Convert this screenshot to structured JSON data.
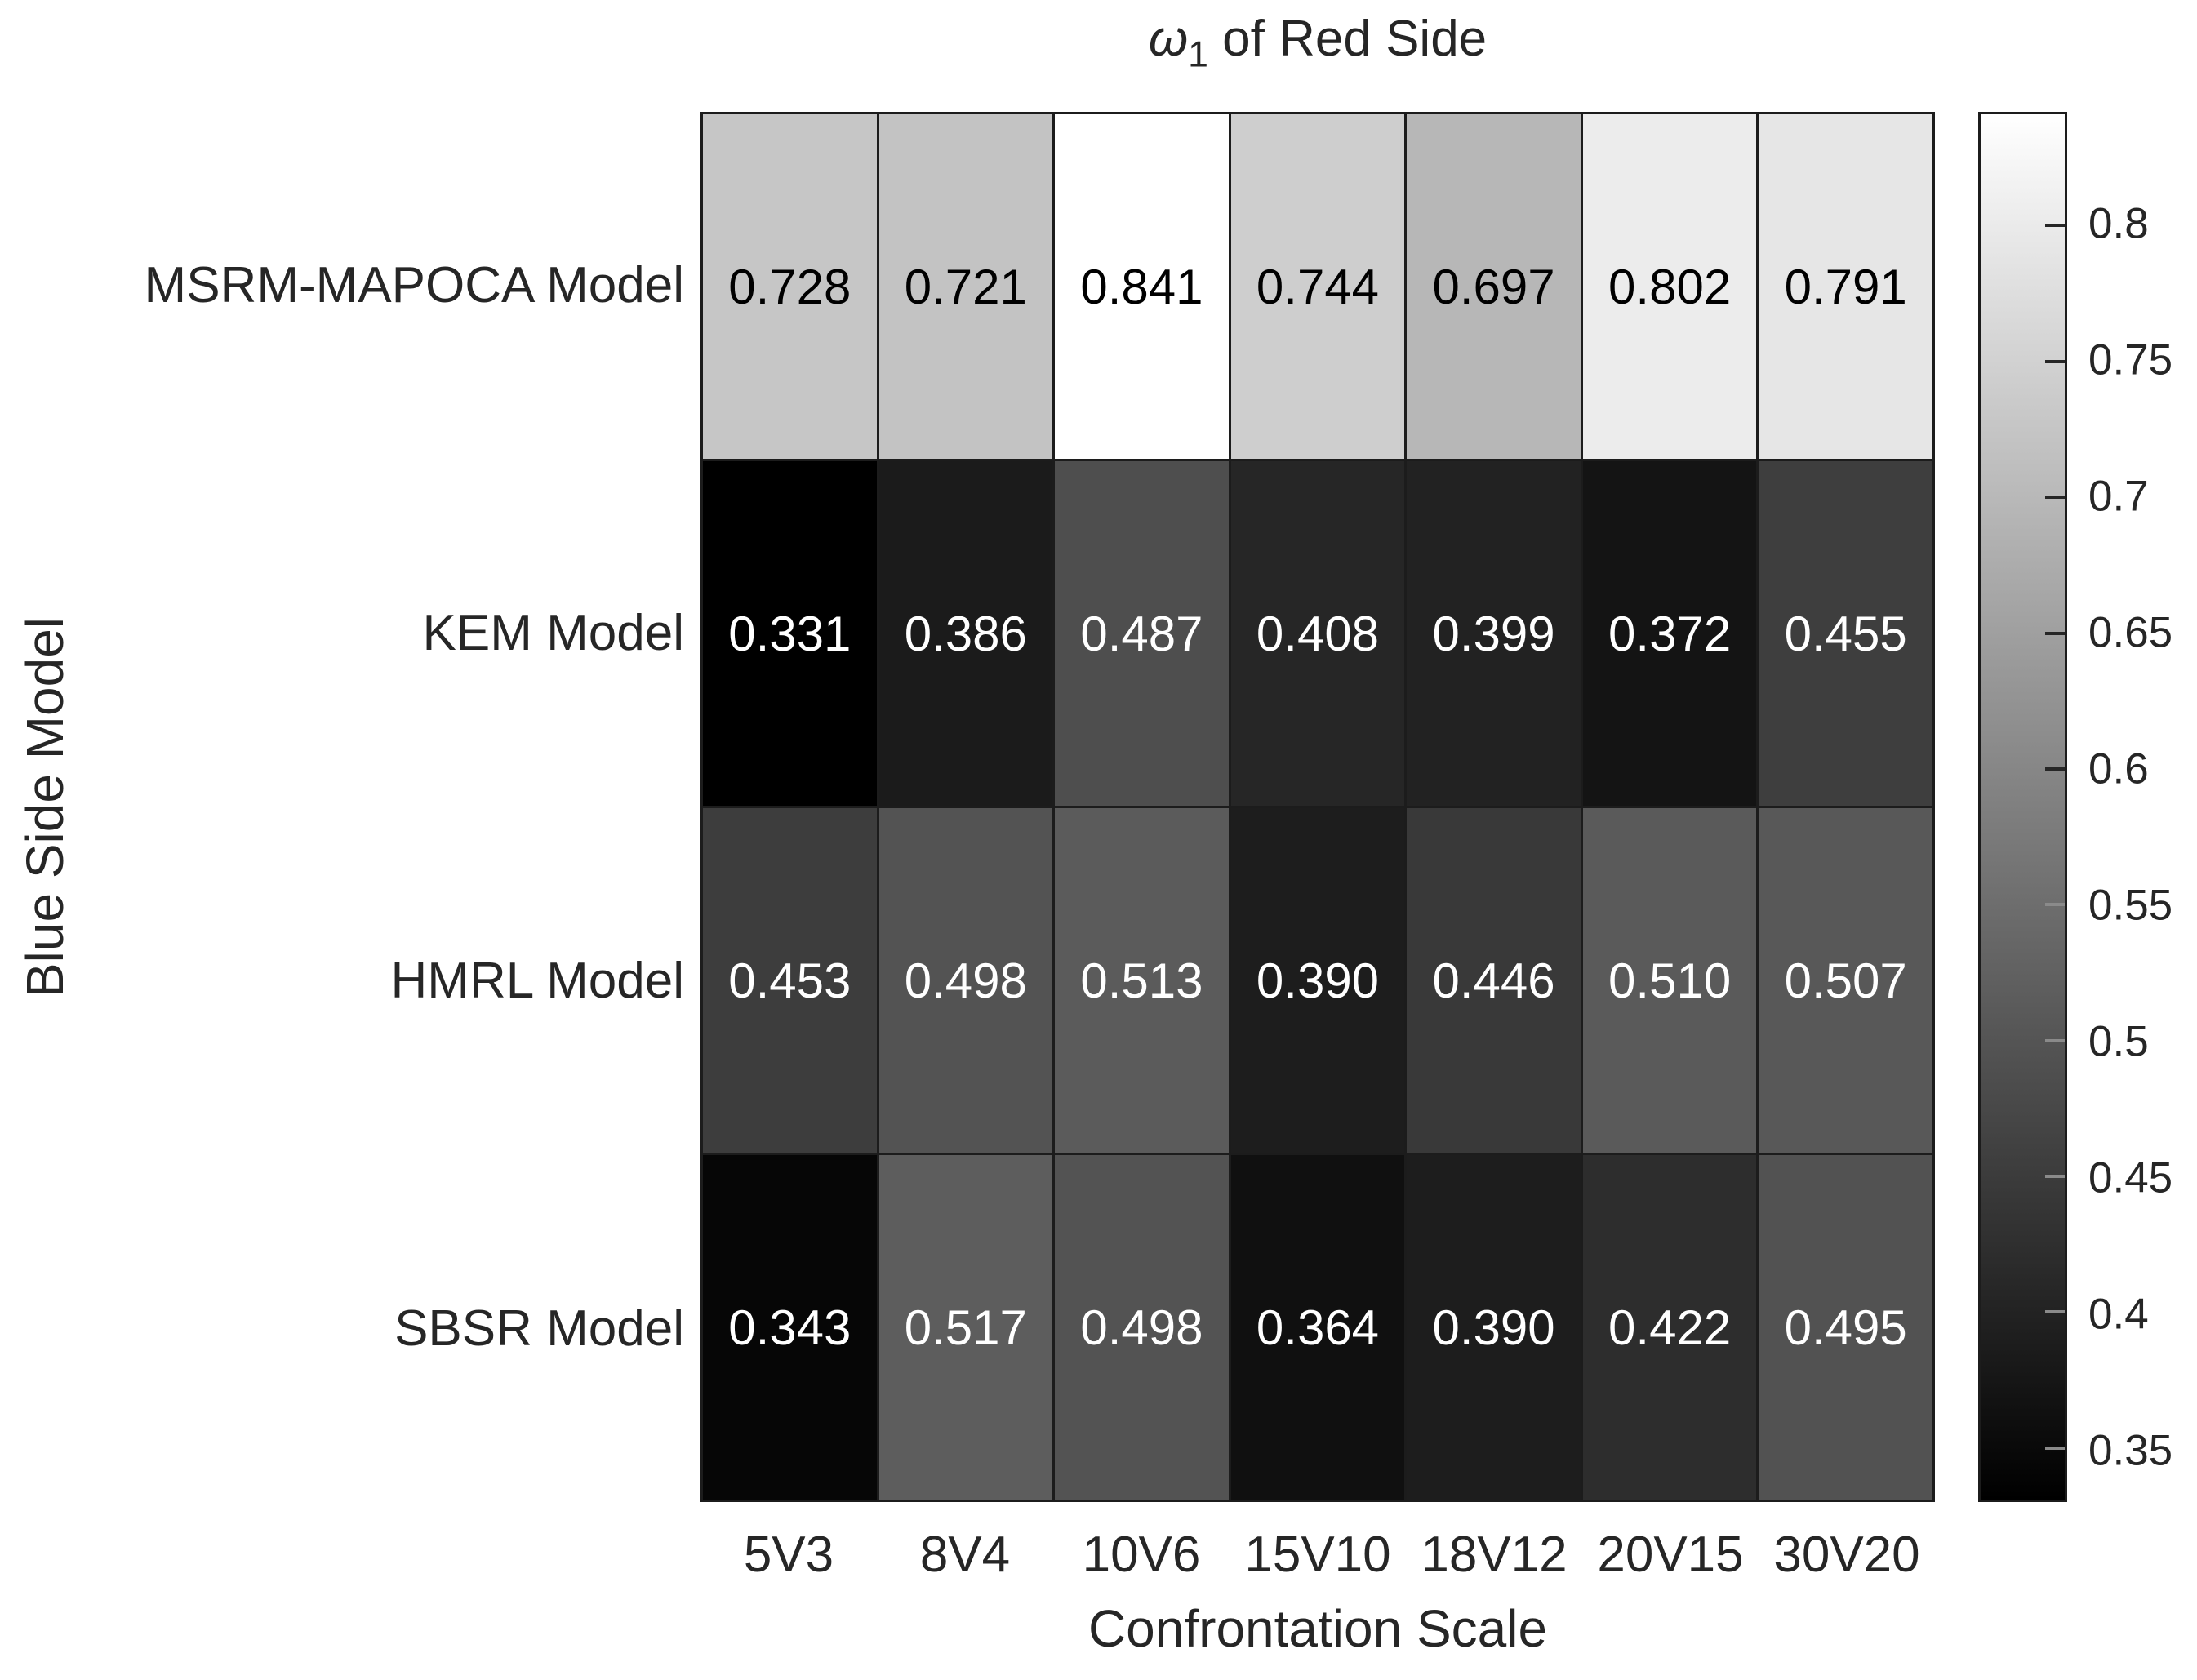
{
  "chart_data": {
    "type": "heatmap",
    "title": "ω_1 of Red Side",
    "title_parts": {
      "symbol": "ω",
      "subscript": "1",
      "rest": " of Red Side"
    },
    "xlabel": "Confrontation Scale",
    "ylabel": "Blue Side Model",
    "rows": [
      "MSRM-MAPOCA Model",
      "KEM Model",
      "HMRL Model",
      "SBSR Model"
    ],
    "columns": [
      "5V3",
      "8V4",
      "10V6",
      "15V10",
      "18V12",
      "20V15",
      "30V20"
    ],
    "values": [
      [
        0.728,
        0.721,
        0.841,
        0.744,
        0.697,
        0.802,
        0.791
      ],
      [
        0.331,
        0.386,
        0.487,
        0.408,
        0.399,
        0.372,
        0.455
      ],
      [
        0.453,
        0.498,
        0.513,
        0.39,
        0.446,
        0.51,
        0.507
      ],
      [
        0.343,
        0.517,
        0.498,
        0.364,
        0.39,
        0.422,
        0.495
      ]
    ],
    "value_decimals": 3,
    "colormap": "gray",
    "color_limits": [
      0.331,
      0.841
    ],
    "colorbar_tick_labels": [
      "0.8",
      "0.75",
      "0.7",
      "0.65",
      "0.6",
      "0.55",
      "0.5",
      "0.45",
      "0.4",
      "0.35"
    ],
    "legend_position": "right-colorbar",
    "grid": true,
    "colors": {
      "background": "#ffffff",
      "grid_line": "#1c1c1c",
      "label_text": "#262626",
      "cell_text_on_light": "#000000",
      "cell_text_on_dark": "#ffffff",
      "tick_dark": "#262626",
      "tick_light": "#8a8a8a"
    }
  }
}
